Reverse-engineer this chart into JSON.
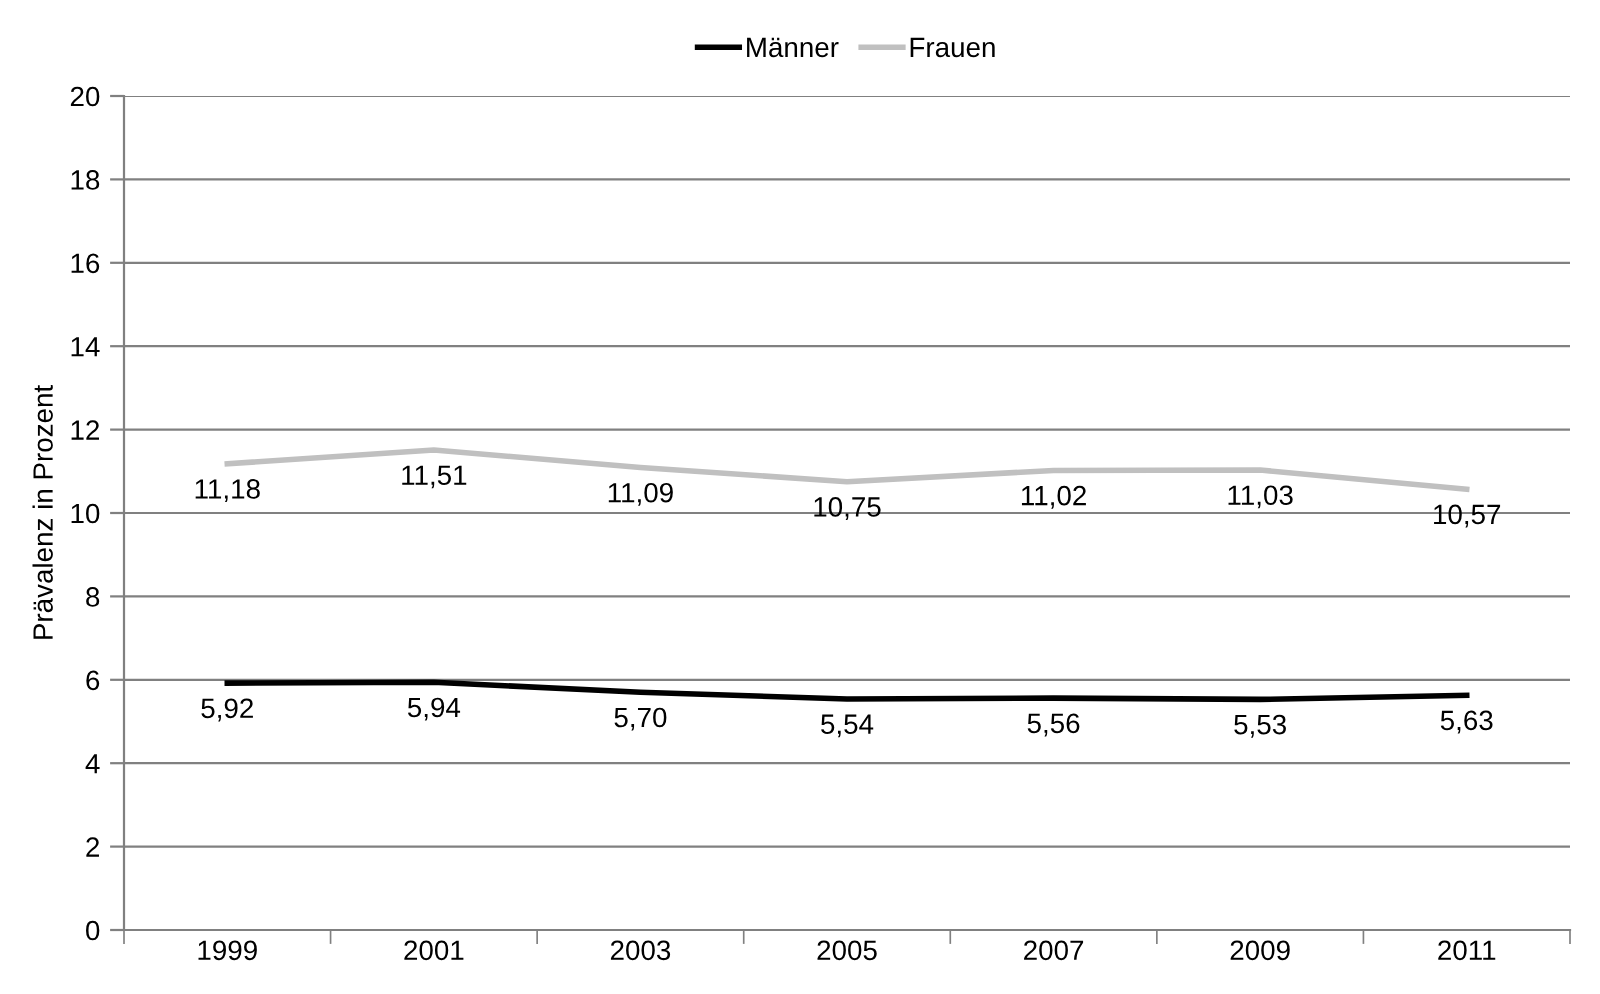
{
  "chart_data": {
    "type": "line",
    "ylabel": "Prävalenz in Prozent",
    "categories": [
      "1999",
      "2001",
      "2003",
      "2005",
      "2007",
      "2009",
      "2011"
    ],
    "series": [
      {
        "name": "Männer",
        "color": "#000000",
        "values": [
          5.92,
          5.94,
          5.7,
          5.54,
          5.56,
          5.53,
          5.63
        ],
        "value_labels": [
          "5,92",
          "5,94",
          "5,70",
          "5,54",
          "5,56",
          "5,53",
          "5,63"
        ]
      },
      {
        "name": "Frauen",
        "color": "#c0c0c0",
        "values": [
          11.18,
          11.51,
          11.09,
          10.75,
          11.02,
          11.03,
          10.57
        ],
        "value_labels": [
          "11,18",
          "11,51",
          "11,09",
          "10,75",
          "11,02",
          "11,03",
          "10,57"
        ]
      }
    ],
    "ylim": [
      0,
      20
    ],
    "yticks": [
      0,
      2,
      4,
      6,
      8,
      10,
      12,
      14,
      16,
      18,
      20
    ],
    "grid": "y",
    "legend": "top",
    "marker": "none",
    "line_style": "solid"
  }
}
